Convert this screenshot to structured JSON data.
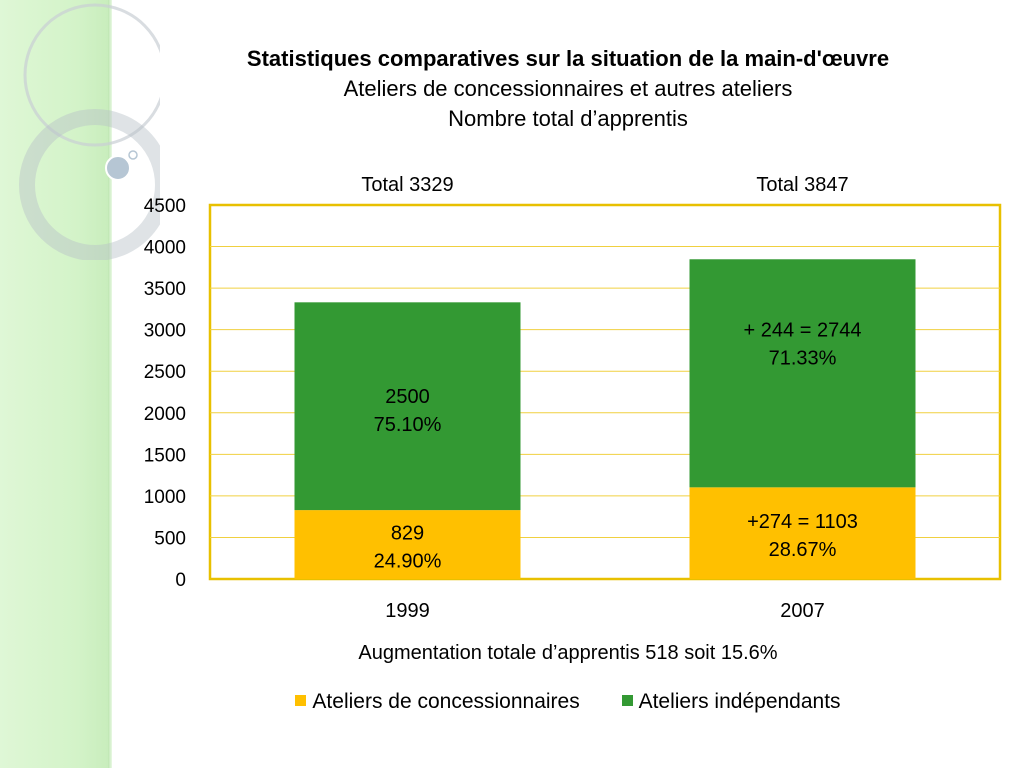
{
  "header": {
    "title": "Statistiques comparatives sur la situation de la main-d'œuvre",
    "subtitle": "Ateliers de concessionnaires et autres ateliers",
    "subtitle2": "Nombre total d’apprentis"
  },
  "caption": "Augmentation totale d’apprentis 518 soit 15.6%",
  "colors": {
    "concessionnaires": "#ffc000",
    "independants": "#339933",
    "frame": "#e8c000",
    "gridline": "#f0d040"
  },
  "chart_data": {
    "type": "bar",
    "stacked": true,
    "categories": [
      "1999",
      "2007"
    ],
    "series": [
      {
        "name": "Ateliers de concessionnaires",
        "values": [
          829,
          1103
        ],
        "labels": [
          "829\n24.90%",
          "+274 = 1103\n28.67%"
        ]
      },
      {
        "name": "Ateliers indépendants",
        "values": [
          2500,
          2744
        ],
        "labels": [
          "2500\n75.10%",
          "+ 244 = 2744\n71.33%"
        ]
      }
    ],
    "totals": [
      {
        "label": "Total",
        "value": "3329"
      },
      {
        "label": "Total",
        "value": "3847"
      }
    ],
    "yticks": [
      "0",
      "500",
      "1000",
      "1500",
      "2000",
      "2500",
      "3000",
      "3500",
      "4000",
      "4500"
    ],
    "ylim": [
      0,
      4500
    ],
    "legend_position": "bottom"
  }
}
